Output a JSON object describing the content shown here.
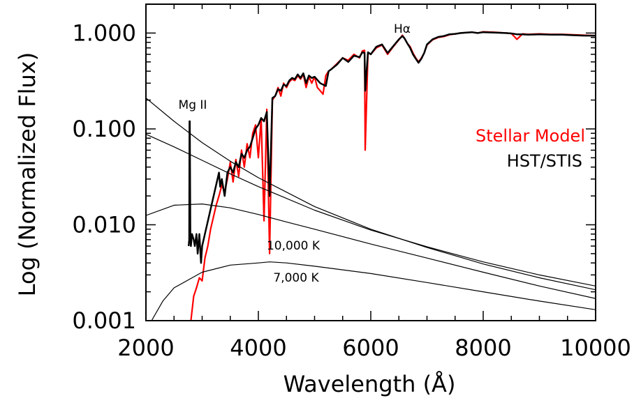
{
  "chart_data": {
    "type": "line",
    "xlabel": "Wavelength (Å)",
    "ylabel": "Log (Normalized Flux)",
    "xlim": [
      2000,
      10000
    ],
    "ylim": [
      0.001,
      2.0
    ],
    "yscale": "log",
    "x_ticks": [
      "2000",
      "4000",
      "6000",
      "8000",
      "10000"
    ],
    "y_ticks": [
      "0.001",
      "0.010",
      "0.100",
      "1.000"
    ],
    "legend": {
      "placement": "right",
      "entries": [
        {
          "label": "Stellar Model",
          "color": "#ff0000"
        },
        {
          "label": "HST/STIS",
          "color": "#000000"
        }
      ]
    },
    "annotations": [
      "Hα",
      "Mg II",
      "10,000 K",
      "7,000 K"
    ],
    "series": [
      {
        "name": "Stellar Model",
        "color": "#ff0000",
        "x": [
          2800,
          2850,
          2900,
          2950,
          3000,
          3050,
          3100,
          3150,
          3200,
          3250,
          3300,
          3350,
          3400,
          3450,
          3500,
          3550,
          3600,
          3650,
          3700,
          3750,
          3800,
          3850,
          3900,
          3950,
          4000,
          4050,
          4100,
          4150,
          4200,
          4250,
          4300,
          4350,
          4400,
          4450,
          4500,
          4550,
          4600,
          4650,
          4700,
          4750,
          4800,
          4850,
          4900,
          4950,
          5000,
          5050,
          5100,
          5150,
          5200,
          5250,
          5300,
          5400,
          5500,
          5600,
          5700,
          5800,
          5850,
          5890,
          5900,
          5950,
          6000,
          6100,
          6200,
          6300,
          6400,
          6500,
          6563,
          6600,
          6650,
          6700,
          6750,
          6800,
          6850,
          6900,
          6950,
          7000,
          7100,
          7200,
          7300,
          7400,
          7500,
          7600,
          7700,
          7800,
          7900,
          8000,
          8200,
          8400,
          8500,
          8600,
          8700,
          8800,
          9000,
          9200,
          9400,
          9600,
          9800,
          10000
        ],
        "y": [
          0.001,
          0.0018,
          0.0022,
          0.0028,
          0.0026,
          0.0045,
          0.006,
          0.009,
          0.012,
          0.016,
          0.02,
          0.026,
          0.022,
          0.03,
          0.045,
          0.028,
          0.048,
          0.032,
          0.06,
          0.04,
          0.07,
          0.05,
          0.09,
          0.11,
          0.05,
          0.13,
          0.011,
          0.16,
          0.005,
          0.2,
          0.22,
          0.27,
          0.22,
          0.3,
          0.27,
          0.31,
          0.33,
          0.32,
          0.36,
          0.33,
          0.37,
          0.27,
          0.35,
          0.3,
          0.35,
          0.27,
          0.25,
          0.23,
          0.36,
          0.4,
          0.42,
          0.48,
          0.55,
          0.52,
          0.6,
          0.55,
          0.65,
          0.66,
          0.06,
          0.62,
          0.6,
          0.7,
          0.75,
          0.6,
          0.72,
          0.85,
          0.95,
          0.88,
          0.78,
          0.72,
          0.62,
          0.55,
          0.5,
          0.55,
          0.62,
          0.75,
          0.85,
          0.9,
          0.92,
          0.96,
          0.98,
          1.0,
          1.01,
          1.02,
          1.0,
          1.03,
          1.02,
          1.0,
          0.99,
          0.86,
          0.98,
          0.97,
          0.98,
          0.97,
          0.97,
          0.96,
          0.95,
          0.94
        ]
      },
      {
        "name": "HST/STIS",
        "color": "#000000",
        "x": [
          2760,
          2770,
          2775,
          2780,
          2790,
          2800,
          2810,
          2820,
          2850,
          2870,
          2900,
          2920,
          2950,
          2980,
          3000,
          3300,
          3320,
          3350,
          3400,
          3450,
          3500,
          3550,
          3600,
          3650,
          3700,
          3750,
          3800,
          3850,
          3900,
          3950,
          4000,
          4050,
          4100,
          4150,
          4200,
          4250,
          4300,
          4350,
          4400,
          4450,
          4500,
          4550,
          4600,
          4650,
          4700,
          4750,
          4800,
          4850,
          4900,
          4950,
          5000,
          5100,
          5200,
          5250,
          5300,
          5400,
          5500,
          5600,
          5700,
          5800,
          5850,
          5890,
          5900,
          5950,
          6000,
          6100,
          6200,
          6300,
          6400,
          6500,
          6563,
          6600,
          6650,
          6700,
          6750,
          6800,
          6850,
          6900,
          6950,
          7000,
          7100,
          7200,
          7300,
          7400,
          7500,
          7600,
          7700,
          7800,
          7900,
          8000,
          8200,
          8400,
          8500,
          8600,
          8700,
          8800,
          9000,
          9200,
          9400,
          9600,
          9800,
          10000
        ],
        "y": [
          0.006,
          0.007,
          0.12,
          0.12,
          0.008,
          0.006,
          0.007,
          0.008,
          0.007,
          0.006,
          0.008,
          0.005,
          0.008,
          0.004,
          0.006,
          0.035,
          0.025,
          0.03,
          0.02,
          0.035,
          0.04,
          0.035,
          0.045,
          0.04,
          0.055,
          0.05,
          0.06,
          0.065,
          0.08,
          0.1,
          0.11,
          0.13,
          0.12,
          0.15,
          0.02,
          0.21,
          0.22,
          0.26,
          0.25,
          0.29,
          0.28,
          0.32,
          0.34,
          0.33,
          0.37,
          0.34,
          0.38,
          0.3,
          0.36,
          0.34,
          0.35,
          0.3,
          0.28,
          0.4,
          0.42,
          0.47,
          0.55,
          0.5,
          0.58,
          0.56,
          0.63,
          0.62,
          0.25,
          0.63,
          0.6,
          0.72,
          0.76,
          0.62,
          0.73,
          0.86,
          0.93,
          0.88,
          0.78,
          0.7,
          0.6,
          0.54,
          0.49,
          0.54,
          0.62,
          0.76,
          0.86,
          0.91,
          0.93,
          0.97,
          0.98,
          1.0,
          1.01,
          1.02,
          1.0,
          1.02,
          1.01,
          1.0,
          0.99,
          0.97,
          0.97,
          0.96,
          0.97,
          0.96,
          0.96,
          0.95,
          0.94,
          0.94
        ]
      },
      {
        "name": "",
        "color": "#000000",
        "x": [
          2000,
          2500,
          3000,
          3500,
          4000,
          5000,
          6000,
          7000,
          8000,
          9000,
          10000
        ],
        "y": [
          0.21,
          0.12,
          0.072,
          0.046,
          0.031,
          0.0155,
          0.009,
          0.0058,
          0.0039,
          0.0028,
          0.0021
        ]
      },
      {
        "name": "",
        "color": "#000000",
        "x": [
          2000,
          2500,
          3000,
          3500,
          4000,
          5000,
          6000,
          7000,
          8000,
          9000,
          10000
        ],
        "y": [
          0.088,
          0.065,
          0.047,
          0.034,
          0.025,
          0.0142,
          0.0088,
          0.0059,
          0.0041,
          0.003,
          0.0023
        ]
      },
      {
        "name": "",
        "color": "#000000",
        "x": [
          2000,
          2500,
          3000,
          3500,
          4000,
          4500,
          5000,
          6000,
          7000,
          8000,
          9000,
          10000
        ],
        "y": [
          0.0125,
          0.016,
          0.0165,
          0.015,
          0.0128,
          0.0107,
          0.009,
          0.0063,
          0.0045,
          0.0032,
          0.0023,
          0.0017
        ]
      },
      {
        "name": "",
        "color": "#000000",
        "x": [
          2100,
          2300,
          2500,
          3000,
          3500,
          4000,
          4200,
          4500,
          5000,
          6000,
          7000,
          8000,
          9000,
          10000
        ],
        "y": [
          0.001,
          0.0016,
          0.0022,
          0.0032,
          0.0038,
          0.004,
          0.0041,
          0.004,
          0.0037,
          0.0031,
          0.0025,
          0.002,
          0.0016,
          0.0013
        ]
      }
    ]
  }
}
